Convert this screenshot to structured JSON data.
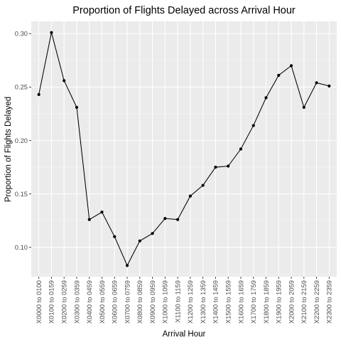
{
  "chart_data": {
    "type": "line",
    "title": "Proportion of Flights Delayed across Arrival Hour",
    "xlabel": "Arrival Hour",
    "ylabel": "Proportion of Flights Delayed",
    "categories": [
      "X0000 to 0100",
      "X0100 to 0159",
      "X0200 to 0259",
      "X0300 to 0359",
      "X0400 to 0459",
      "X0500 to 0559",
      "X0600 to 0659",
      "X0700 to 0759",
      "X0800 to 0859",
      "X0900 to 0959",
      "X1000 to 1059",
      "X1100 to 1159",
      "X1200 to 1259",
      "X1300 to 1359",
      "X1400 to 1459",
      "X1500 to 1559",
      "X1600 to 1659",
      "X1700 to 1759",
      "X1800 to 1859",
      "X1900 to 1959",
      "X2000 to 2059",
      "X2100 to 2159",
      "X2200 to 2259",
      "X2300 to 2359"
    ],
    "values": [
      0.243,
      0.301,
      0.256,
      0.231,
      0.126,
      0.133,
      0.11,
      0.083,
      0.106,
      0.113,
      0.127,
      0.126,
      0.148,
      0.158,
      0.175,
      0.176,
      0.192,
      0.214,
      0.24,
      0.261,
      0.27,
      0.231,
      0.254,
      0.251
    ],
    "ylim": [
      0.0725,
      0.3115
    ],
    "yticks": [
      0.1,
      0.15,
      0.2,
      0.25,
      0.3
    ],
    "ytick_labels": [
      "0.10",
      "0.15",
      "0.20",
      "0.25",
      "0.30"
    ],
    "grid": true,
    "legend": "none"
  }
}
